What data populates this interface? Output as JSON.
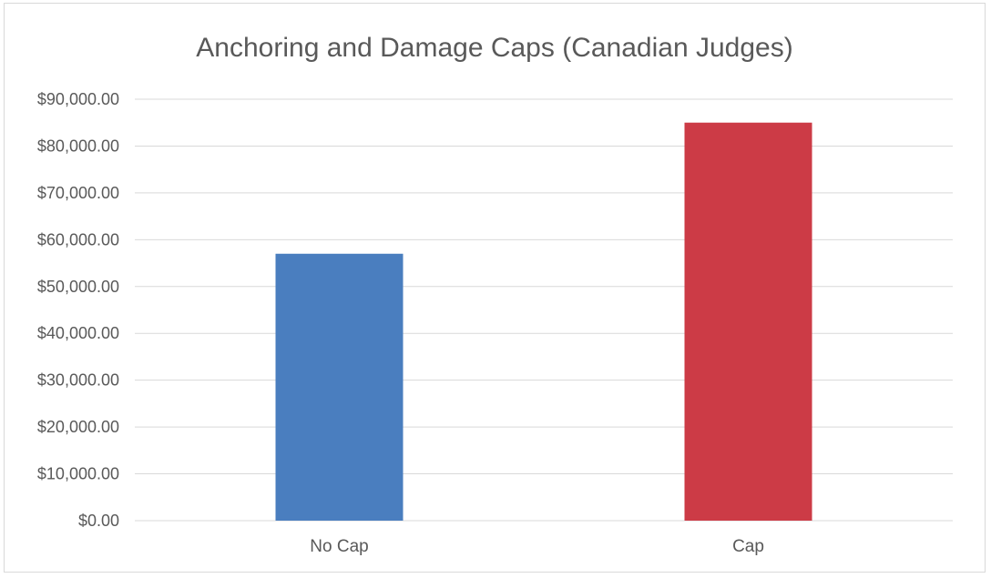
{
  "chart_data": {
    "type": "bar",
    "title": "Anchoring and Damage Caps (Canadian Judges)",
    "categories": [
      "No Cap",
      "Cap"
    ],
    "values": [
      57000,
      85000
    ],
    "bar_colors": [
      "#4a7ebf",
      "#cc3b46"
    ],
    "ylim": [
      0,
      90000
    ],
    "ytick_step": 10000,
    "ytick_labels": [
      "$0.00",
      "$10,000.00",
      "$20,000.00",
      "$30,000.00",
      "$40,000.00",
      "$50,000.00",
      "$60,000.00",
      "$70,000.00",
      "$80,000.00",
      "$90,000.00"
    ],
    "grid": true,
    "legend": false,
    "xlabel": "",
    "ylabel": ""
  }
}
